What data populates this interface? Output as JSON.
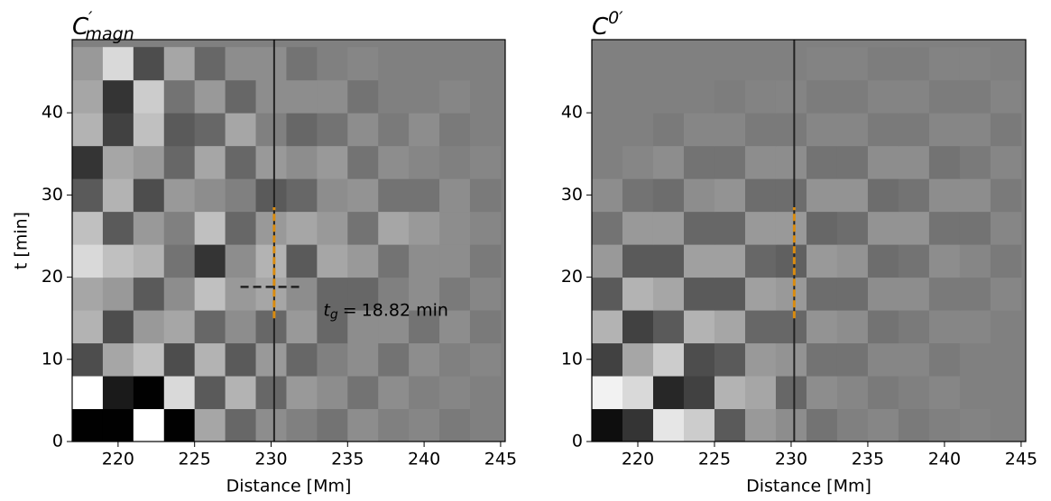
{
  "chart_data": [
    {
      "type": "heatmap",
      "title": {
        "base": "C",
        "sup": "′",
        "sub": "magn"
      },
      "xlabel": "Distance [Mm]",
      "ylabel": "t [min]",
      "xlim": [
        217,
        245.3
      ],
      "ylim": [
        0,
        48.9
      ],
      "xticks": [
        220,
        225,
        230,
        235,
        240,
        245
      ],
      "yticks": [
        0,
        10,
        20,
        30,
        40
      ],
      "colormap": "gray",
      "zlim": [
        -1,
        1
      ],
      "x_edges": [
        217,
        219,
        221,
        223,
        225,
        227,
        229,
        231,
        233,
        235,
        237,
        239,
        241,
        243,
        245
      ],
      "t_edges": [
        0,
        4,
        8,
        12,
        16,
        20,
        24,
        28,
        32,
        36,
        40,
        44,
        48
      ],
      "z": [
        [
          -1,
          -1,
          1,
          -1,
          0.3,
          -0.2,
          0.1,
          0,
          -0.1,
          0.1,
          0,
          0.05,
          -0.05,
          0
        ],
        [
          1,
          -0.8,
          -1,
          0.7,
          -0.3,
          0.4,
          -0.2,
          0.2,
          0.1,
          -0.1,
          0.1,
          0,
          0.05,
          0
        ],
        [
          -0.4,
          0.3,
          0.5,
          -0.4,
          0.4,
          -0.3,
          0.2,
          -0.2,
          0,
          0.1,
          -0.1,
          0.1,
          0,
          0.05
        ],
        [
          0.4,
          -0.4,
          0.2,
          0.3,
          -0.2,
          0.1,
          -0.2,
          0.2,
          -0.2,
          0.1,
          0.1,
          -0.1,
          0.1,
          -0.05
        ],
        [
          0.3,
          0.2,
          -0.3,
          0.1,
          0.5,
          0.2,
          0.3,
          0.1,
          -0.2,
          -0.2,
          0,
          0.1,
          -0.05,
          0.05
        ],
        [
          0.7,
          0.5,
          0.4,
          -0.1,
          -0.6,
          0.1,
          0.4,
          -0.3,
          0.3,
          0.2,
          -0.1,
          0.1,
          0.1,
          -0.05
        ],
        [
          0.5,
          -0.3,
          0.2,
          0,
          0.5,
          -0.2,
          0.2,
          0.3,
          0.2,
          -0.1,
          0.3,
          0.2,
          0.1,
          0.05
        ],
        [
          -0.3,
          0.4,
          -0.4,
          0.2,
          0.1,
          0,
          -0.3,
          -0.2,
          0.1,
          0.15,
          -0.1,
          -0.1,
          0.1,
          -0.05
        ],
        [
          -0.6,
          0.3,
          0.2,
          -0.2,
          0.3,
          -0.2,
          0.2,
          0.1,
          0.2,
          -0.1,
          0.1,
          0.05,
          0,
          0.05
        ],
        [
          0.4,
          -0.5,
          0.5,
          -0.3,
          -0.2,
          0.3,
          0,
          -0.2,
          -0.1,
          0.1,
          -0.05,
          0.1,
          -0.05,
          0
        ],
        [
          0.3,
          -0.6,
          0.6,
          -0.1,
          0.2,
          -0.2,
          0.1,
          0.1,
          0.1,
          -0.1,
          0,
          0,
          0.05,
          0
        ],
        [
          0.2,
          0.7,
          -0.4,
          0.3,
          -0.2,
          0.1,
          0.1,
          -0.1,
          0,
          0.05,
          0,
          0,
          0,
          0
        ]
      ],
      "vline": {
        "x": 230.2,
        "color": "#222222"
      },
      "orange_segment": {
        "t_range": [
          15,
          28.5
        ],
        "color": "#d98c10"
      },
      "annotation": {
        "symbol": "t",
        "subscript": "g",
        "equals": "=",
        "value": 18.82,
        "unit": "min",
        "x_range": [
          228,
          232
        ]
      }
    },
    {
      "type": "heatmap",
      "title": {
        "base": "C",
        "sup": "0′"
      },
      "xlabel": "Distance [Mm]",
      "xlim": [
        217,
        245.3
      ],
      "ylim": [
        0,
        48.9
      ],
      "xticks": [
        220,
        225,
        230,
        235,
        240,
        245
      ],
      "yticks": [
        0,
        10,
        20,
        30,
        40
      ],
      "colormap": "gray",
      "zlim": [
        -1,
        1
      ],
      "x_edges": [
        217,
        219,
        221,
        223,
        225,
        227,
        229,
        231,
        233,
        235,
        237,
        239,
        241,
        243,
        245
      ],
      "t_edges": [
        0,
        4,
        8,
        12,
        16,
        20,
        24,
        28,
        32,
        36,
        40,
        44,
        48
      ],
      "z": [
        [
          -0.9,
          -0.6,
          0.8,
          0.6,
          -0.3,
          0.2,
          0.1,
          -0.1,
          0,
          0.05,
          -0.05,
          0,
          0.02,
          0
        ],
        [
          0.9,
          0.7,
          -0.7,
          -0.5,
          0.4,
          0.3,
          -0.2,
          0.1,
          0.05,
          -0.05,
          0,
          0.05,
          0,
          0
        ],
        [
          -0.5,
          0.3,
          0.6,
          -0.4,
          -0.3,
          0.2,
          0.15,
          -0.1,
          -0.1,
          0.05,
          0.05,
          -0.05,
          0,
          0
        ],
        [
          0.4,
          -0.5,
          -0.3,
          0.4,
          0.3,
          -0.2,
          -0.2,
          0.15,
          0.1,
          -0.1,
          -0.05,
          0.05,
          0.05,
          0
        ],
        [
          -0.3,
          0.4,
          0.3,
          -0.3,
          -0.3,
          0.25,
          0.2,
          -0.15,
          -0.15,
          0.1,
          0.1,
          -0.05,
          -0.05,
          0.05
        ],
        [
          0.2,
          -0.3,
          -0.3,
          0.25,
          0.25,
          -0.2,
          -0.25,
          0.2,
          0.15,
          -0.15,
          -0.1,
          0.1,
          0.05,
          -0.05
        ],
        [
          -0.1,
          0.2,
          0.2,
          -0.2,
          -0.2,
          0.2,
          0.2,
          -0.2,
          -0.15,
          0.15,
          0.15,
          -0.1,
          -0.1,
          0.05
        ],
        [
          0.1,
          -0.1,
          -0.15,
          0.1,
          0.15,
          -0.15,
          -0.15,
          0.15,
          0.15,
          -0.15,
          -0.1,
          0.1,
          0.1,
          -0.05
        ],
        [
          0,
          0.05,
          0.1,
          -0.1,
          -0.1,
          0.1,
          0.1,
          -0.1,
          -0.1,
          0.1,
          0.1,
          -0.1,
          -0.05,
          0.05
        ],
        [
          0,
          0,
          -0.05,
          0.05,
          0.05,
          -0.05,
          -0.05,
          0.05,
          0.05,
          -0.05,
          -0.05,
          0.05,
          0.05,
          -0.05
        ],
        [
          0,
          0,
          0,
          0,
          -0.02,
          0.02,
          0.03,
          -0.03,
          -0.03,
          0.03,
          0.03,
          -0.03,
          -0.03,
          0.03
        ],
        [
          0,
          0,
          0,
          0,
          0,
          0,
          0,
          0.02,
          0.02,
          -0.02,
          -0.02,
          0.02,
          0.02,
          0
        ]
      ],
      "vline": {
        "x": 230.2,
        "color": "#222222"
      },
      "orange_segment": {
        "t_range": [
          15,
          28.5
        ],
        "color": "#d98c10"
      }
    }
  ]
}
